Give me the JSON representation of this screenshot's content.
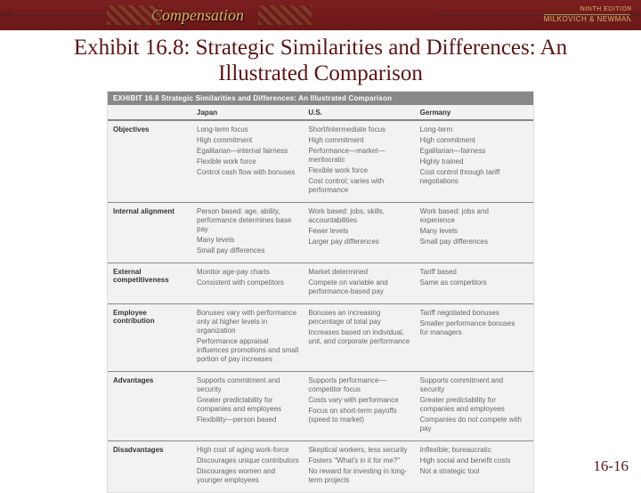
{
  "header": {
    "brand": "Compensation",
    "edition": "NINTH EDITION",
    "authors": "MILKOVICH & NEWMAN"
  },
  "title": "Exhibit 16.8:  Strategic Similarities and Differences:  An Illustrated Comparison",
  "exhibit_header": "EXHIBIT 16.8   Strategic Similarities and Differences: An Illustrated Comparison",
  "columns": {
    "c0": "",
    "c1": "Japan",
    "c2": "U.S.",
    "c3": "Germany"
  },
  "rows": [
    {
      "label": "Objectives",
      "c1": "Long-term focus\nHigh commitment\nEgalitarian—internal fairness\nFlexible work force\nControl cash flow with bonuses",
      "c2": "Short/intermediate focus\nHigh commitment\nPerformance—market—meritocratic\nFlexible work force\nCost control; varies with performance",
      "c3": "Long-term\nHigh commitment\nEgalitarian—fairness\n\nHighly trained\nCost control through tariff negotiations"
    },
    {
      "label": "Internal alignment",
      "c1": "Person based: age, ability, performance determines base pay\nMany levels\nSmall pay differences",
      "c2": "Work based: jobs, skills, accountabilities\n\nFewer levels\nLarger pay differences",
      "c3": "Work based: jobs and experience\n\nMany levels\nSmall pay differences"
    },
    {
      "label": "External competitiveness",
      "c1": "Monitor age-pay charts\nConsistent with competitors",
      "c2": "Market determined\nCompete on variable and performance-based pay",
      "c3": "Tariff based\nSame as competitors"
    },
    {
      "label": "Employee contribution",
      "c1": "Bonuses vary with performance only at higher levels in organization\nPerformance appraisal influences promotions and small portion of pay increases",
      "c2": "Bonuses an increasing percentage of total pay\n\nIncreases based on individual, unit, and corporate performance",
      "c3": "Tariff negotiated bonuses\n\nSmaller performance bonuses for managers"
    },
    {
      "label": "Advantages",
      "c1": "Supports commitment and security\nGreater predictability for companies and employees\nFlexibility—person based",
      "c2": "Supports performance—competitor focus\nCosts vary with performance\n\nFocus on short-term payoffs (speed to market)",
      "c3": "Supports commitment and security\nGreater predictability for companies and employees\nCompanies do not compete with pay"
    },
    {
      "label": "Disadvantages",
      "c1": "High cost of aging work-force\nDiscourages unique contributors\nDiscourages women and younger employees",
      "c2": "Skeptical workers, less security\nFosters \"What's in it for me?\"\nNo reward for investing in long-term projects",
      "c3": "Inflexible; bureaucratic\n\nHigh social and benefit costs\nNot a strategic tool"
    }
  ],
  "page_number": "16-16"
}
